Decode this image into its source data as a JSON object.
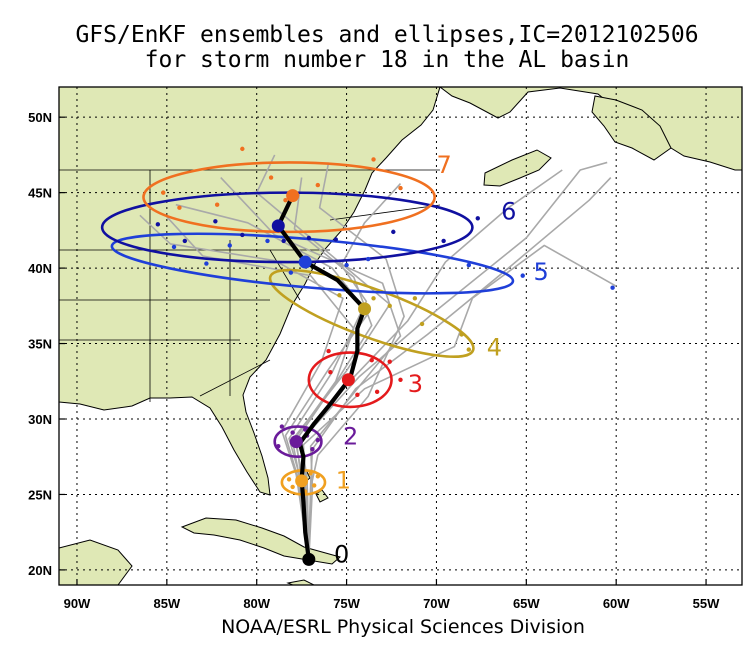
{
  "title_line1": "GFS/EnKF ensembles and ellipses,IC=2012102506",
  "title_line2": "for storm number 18 in the AL basin",
  "footer": "NOAA/ESRL Physical Sciences Division",
  "map": {
    "lon_range": [
      -91,
      -53
    ],
    "lat_range": [
      19,
      52
    ],
    "x_ticks": [
      {
        "lon": -90,
        "label": "90W"
      },
      {
        "lon": -85,
        "label": "85W"
      },
      {
        "lon": -80,
        "label": "80W"
      },
      {
        "lon": -75,
        "label": "75W"
      },
      {
        "lon": -70,
        "label": "70W"
      },
      {
        "lon": -65,
        "label": "65W"
      },
      {
        "lon": -60,
        "label": "60W"
      },
      {
        "lon": -55,
        "label": "55W"
      }
    ],
    "y_ticks": [
      {
        "lat": 20,
        "label": "20N"
      },
      {
        "lat": 25,
        "label": "25N"
      },
      {
        "lat": 30,
        "label": "30N"
      },
      {
        "lat": 35,
        "label": "35N"
      },
      {
        "lat": 40,
        "label": "40N"
      },
      {
        "lat": 45,
        "label": "45N"
      },
      {
        "lat": 50,
        "label": "50N"
      }
    ],
    "land_color": "#dfe8b5",
    "ocean_color": "#ffffff"
  },
  "mean_track": {
    "color": "#000000",
    "points": [
      {
        "lon": -77.1,
        "lat": 20.7
      },
      {
        "lon": -77.3,
        "lat": 22.5
      },
      {
        "lon": -77.4,
        "lat": 24.5
      },
      {
        "lon": -77.5,
        "lat": 26.0
      },
      {
        "lon": -77.4,
        "lat": 27.5
      },
      {
        "lon": -77.6,
        "lat": 28.4
      },
      {
        "lon": -76.8,
        "lat": 29.7
      },
      {
        "lon": -75.9,
        "lat": 31.0
      },
      {
        "lon": -74.8,
        "lat": 32.7
      },
      {
        "lon": -74.4,
        "lat": 34.5
      },
      {
        "lon": -74.4,
        "lat": 36.0
      },
      {
        "lon": -74.0,
        "lat": 37.3
      },
      {
        "lon": -75.5,
        "lat": 39.2
      },
      {
        "lon": -77.3,
        "lat": 40.4
      },
      {
        "lon": -78.3,
        "lat": 42.0
      },
      {
        "lon": -78.8,
        "lat": 42.8
      },
      {
        "lon": -78.0,
        "lat": 44.8
      }
    ]
  },
  "ensemble_tracks": {
    "color": "#a9a9a9",
    "tracks": [
      [
        [
          -77.1,
          20.7
        ],
        [
          -77.5,
          25.8
        ],
        [
          -77.8,
          28.6
        ],
        [
          -75.5,
          32.6
        ],
        [
          -73.6,
          36.2
        ],
        [
          -74.6,
          39.4
        ],
        [
          -77.9,
          42.6
        ],
        [
          -77.5,
          46.0
        ]
      ],
      [
        [
          -77.1,
          20.7
        ],
        [
          -76.9,
          25.5
        ],
        [
          -77.0,
          28.2
        ],
        [
          -74.2,
          32.3
        ],
        [
          -72.0,
          35.5
        ],
        [
          -73.0,
          39.0
        ],
        [
          -79.0,
          42.2
        ],
        [
          -82.0,
          46.0
        ]
      ],
      [
        [
          -77.1,
          20.7
        ],
        [
          -77.7,
          26.1
        ],
        [
          -78.4,
          28.9
        ],
        [
          -76.0,
          33.3
        ],
        [
          -73.8,
          37.0
        ],
        [
          -75.8,
          40.0
        ],
        [
          -80.5,
          43.0
        ],
        [
          -84.5,
          44.2
        ]
      ],
      [
        [
          -77.1,
          20.7
        ],
        [
          -77.2,
          26.0
        ],
        [
          -77.6,
          28.5
        ],
        [
          -74.9,
          32.4
        ],
        [
          -71.6,
          36.5
        ],
        [
          -69.5,
          40.4
        ],
        [
          -66.0,
          44.0
        ],
        [
          -63.0,
          46.5
        ]
      ],
      [
        [
          -77.1,
          20.7
        ],
        [
          -77.0,
          25.7
        ],
        [
          -76.9,
          28.0
        ],
        [
          -74.5,
          32.0
        ],
        [
          -70.5,
          35.6
        ],
        [
          -66.0,
          40.0
        ],
        [
          -61.5,
          44.5
        ],
        [
          -60.3,
          46.0
        ]
      ],
      [
        [
          -77.1,
          20.7
        ],
        [
          -77.6,
          26.2
        ],
        [
          -78.2,
          28.7
        ],
        [
          -75.8,
          33.1
        ],
        [
          -73.9,
          37.8
        ],
        [
          -75.3,
          40.2
        ],
        [
          -74.0,
          43.0
        ],
        [
          -72.0,
          45.6
        ]
      ],
      [
        [
          -77.1,
          20.7
        ],
        [
          -77.3,
          25.9
        ],
        [
          -77.4,
          28.3
        ],
        [
          -74.0,
          32.0
        ],
        [
          -69.0,
          34.8
        ],
        [
          -68.0,
          38.0
        ],
        [
          -64.0,
          41.5
        ],
        [
          -60.0,
          38.8
        ]
      ],
      [
        [
          -77.1,
          20.7
        ],
        [
          -77.8,
          26.3
        ],
        [
          -78.6,
          29.2
        ],
        [
          -76.4,
          33.8
        ],
        [
          -75.2,
          38.0
        ],
        [
          -79.0,
          40.5
        ],
        [
          -84.8,
          41.6
        ],
        [
          -86.5,
          43.5
        ]
      ],
      [
        [
          -77.1,
          20.7
        ],
        [
          -77.0,
          25.4
        ],
        [
          -76.6,
          27.6
        ],
        [
          -73.8,
          31.5
        ],
        [
          -71.8,
          36.8
        ],
        [
          -72.8,
          40.6
        ],
        [
          -76.5,
          44.0
        ],
        [
          -76.0,
          47.0
        ]
      ],
      [
        [
          -77.1,
          20.7
        ],
        [
          -77.4,
          25.9
        ],
        [
          -77.9,
          28.8
        ],
        [
          -75.0,
          33.2
        ],
        [
          -72.6,
          37.6
        ],
        [
          -76.0,
          41.0
        ],
        [
          -80.0,
          45.0
        ],
        [
          -79.0,
          47.5
        ]
      ],
      [
        [
          -77.1,
          20.7
        ],
        [
          -77.2,
          26.0
        ],
        [
          -77.5,
          28.6
        ],
        [
          -74.3,
          32.8
        ],
        [
          -70.0,
          37.2
        ],
        [
          -65.0,
          42.0
        ],
        [
          -62.0,
          46.5
        ],
        [
          -60.5,
          47.0
        ]
      ],
      [
        [
          -77.1,
          20.7
        ],
        [
          -77.6,
          26.0
        ],
        [
          -78.0,
          28.5
        ],
        [
          -75.6,
          32.5
        ],
        [
          -74.6,
          36.0
        ],
        [
          -77.0,
          39.5
        ],
        [
          -83.0,
          40.8
        ],
        [
          -85.0,
          43.4
        ]
      ]
    ]
  },
  "ensemble_members": [
    {
      "day": 1,
      "color": "#f0a020",
      "points": [
        [
          -78.2,
          26.0
        ],
        [
          -77.6,
          25.9
        ],
        [
          -77.0,
          26.4
        ],
        [
          -76.8,
          25.6
        ],
        [
          -77.3,
          25.2
        ],
        [
          -78.0,
          25.5
        ],
        [
          -76.6,
          26.2
        ]
      ]
    },
    {
      "day": 2,
      "color": "#6a1b9a",
      "points": [
        [
          -78.6,
          29.5
        ],
        [
          -77.2,
          28.9
        ],
        [
          -78.8,
          28.2
        ],
        [
          -76.9,
          28.0
        ],
        [
          -78.0,
          29.1
        ],
        [
          -77.3,
          29.3
        ],
        [
          -76.6,
          28.6
        ]
      ]
    },
    {
      "day": 3,
      "color": "#e41a1c",
      "points": [
        [
          -76.0,
          34.5
        ],
        [
          -73.6,
          33.9
        ],
        [
          -72.0,
          32.6
        ],
        [
          -74.4,
          31.6
        ],
        [
          -75.9,
          33.1
        ],
        [
          -73.3,
          31.8
        ],
        [
          -72.6,
          33.8
        ]
      ]
    },
    {
      "day": 4,
      "color": "#c0a020",
      "points": [
        [
          -75.4,
          38.2
        ],
        [
          -72.6,
          37.5
        ],
        [
          -70.8,
          36.3
        ],
        [
          -68.2,
          34.6
        ],
        [
          -73.5,
          38.0
        ],
        [
          -71.2,
          38.0
        ],
        [
          -68.6,
          35.6
        ]
      ]
    },
    {
      "day": 5,
      "color": "#1f3fd8",
      "points": [
        [
          -84.6,
          41.4
        ],
        [
          -81.5,
          41.5
        ],
        [
          -79.4,
          41.8
        ],
        [
          -78.1,
          39.7
        ],
        [
          -73.8,
          40.6
        ],
        [
          -68.2,
          40.2
        ],
        [
          -65.2,
          39.5
        ],
        [
          -60.2,
          38.7
        ],
        [
          -82.8,
          40.3
        ],
        [
          -75.0,
          40.2
        ]
      ]
    },
    {
      "day": 6,
      "color": "#1010a0",
      "points": [
        [
          -85.5,
          42.9
        ],
        [
          -82.3,
          43.1
        ],
        [
          -80.8,
          42.2
        ],
        [
          -78.5,
          41.8
        ],
        [
          -75.6,
          41.9
        ],
        [
          -72.4,
          42.4
        ],
        [
          -67.7,
          43.3
        ],
        [
          -84.0,
          41.8
        ],
        [
          -77.1,
          42.0
        ],
        [
          -69.6,
          41.8
        ]
      ]
    },
    {
      "day": 7,
      "color": "#f07020",
      "points": [
        [
          -85.2,
          45.0
        ],
        [
          -82.2,
          44.2
        ],
        [
          -79.2,
          46.0
        ],
        [
          -76.6,
          45.5
        ],
        [
          -73.5,
          47.2
        ],
        [
          -72.0,
          45.3
        ],
        [
          -80.8,
          47.9
        ],
        [
          -78.4,
          44.5
        ],
        [
          -84.3,
          44.0
        ]
      ]
    }
  ],
  "ellipses": [
    {
      "day": 0,
      "label": "0",
      "color": "#000000",
      "center": [
        -77.1,
        20.7
      ],
      "radii": [
        0.5,
        0.5
      ],
      "label_pos": [
        -75.7,
        21.1
      ]
    },
    {
      "day": 1,
      "label": "1",
      "color": "#f0a020",
      "center": [
        -77.4,
        25.8
      ],
      "radii": [
        1.2,
        0.8
      ],
      "label_pos": [
        -75.6,
        26.0
      ]
    },
    {
      "day": 2,
      "label": "2",
      "color": "#6a1b9a",
      "center": [
        -77.7,
        28.5
      ],
      "radii": [
        1.3,
        1.0
      ],
      "label_pos": [
        -75.2,
        28.9
      ]
    },
    {
      "day": 3,
      "label": "3",
      "color": "#e41a1c",
      "center": [
        -74.8,
        32.6
      ],
      "radii": [
        2.3,
        1.8
      ],
      "label_pos": [
        -71.6,
        32.4
      ]
    },
    {
      "day": 4,
      "label": "4",
      "color": "#c0a020",
      "center": [
        -73.6,
        37.0
      ],
      "radii": [
        6.0,
        1.6
      ],
      "label_pos": [
        -67.2,
        34.8
      ],
      "angle": 20
    },
    {
      "day": 5,
      "label": "5",
      "color": "#1f3fd8",
      "center": [
        -76.9,
        40.3
      ],
      "radii": [
        11.2,
        1.6
      ],
      "label_pos": [
        -64.6,
        39.8
      ],
      "angle": 5
    },
    {
      "day": 6,
      "label": "6",
      "color": "#1010a0",
      "center": [
        -78.3,
        42.7
      ],
      "radii": [
        10.3,
        2.3
      ],
      "label_pos": [
        -66.4,
        43.8
      ],
      "angle": 0
    },
    {
      "day": 7,
      "label": "7",
      "color": "#f07020",
      "center": [
        -78.2,
        44.7
      ],
      "radii": [
        8.1,
        2.3
      ],
      "label_pos": [
        -70.0,
        46.9
      ],
      "angle": 0
    }
  ],
  "mean_positions": [
    {
      "day": 0,
      "color": "#000000",
      "pos": [
        -77.1,
        20.7
      ]
    },
    {
      "day": 1,
      "color": "#f0a020",
      "pos": [
        -77.5,
        25.9
      ]
    },
    {
      "day": 2,
      "color": "#6a1b9a",
      "pos": [
        -77.8,
        28.5
      ]
    },
    {
      "day": 3,
      "color": "#e41a1c",
      "pos": [
        -74.9,
        32.6
      ]
    },
    {
      "day": 4,
      "color": "#c0a020",
      "pos": [
        -74.0,
        37.3
      ]
    },
    {
      "day": 5,
      "color": "#1f3fd8",
      "pos": [
        -77.3,
        40.4
      ]
    },
    {
      "day": 6,
      "color": "#1010a0",
      "pos": [
        -78.8,
        42.8
      ]
    },
    {
      "day": 7,
      "color": "#f07020",
      "pos": [
        -78.0,
        44.8
      ]
    }
  ]
}
